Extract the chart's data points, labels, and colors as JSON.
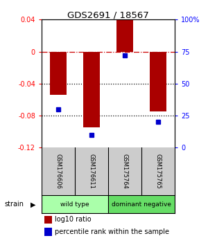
{
  "title": "GDS2691 / 18567",
  "samples": [
    "GSM176606",
    "GSM176611",
    "GSM175764",
    "GSM175765"
  ],
  "log10_ratio": [
    -0.054,
    -0.095,
    0.04,
    -0.075
  ],
  "percentile_rank": [
    30,
    10,
    72,
    20
  ],
  "ylim_left": [
    -0.12,
    0.04
  ],
  "ylim_right": [
    0,
    100
  ],
  "yticks_left": [
    -0.12,
    -0.08,
    -0.04,
    0,
    0.04
  ],
  "yticks_right": [
    0,
    25,
    50,
    75,
    100
  ],
  "ytick_labels_left": [
    "-0.12",
    "-0.08",
    "-0.04",
    "0",
    "0.04"
  ],
  "ytick_labels_right": [
    "0",
    "25",
    "50",
    "75",
    "100%"
  ],
  "bar_color": "#aa0000",
  "dot_color": "#0000cc",
  "groups": [
    {
      "label": "wild type",
      "indices": [
        0,
        1
      ],
      "color": "#aaffaa"
    },
    {
      "label": "dominant negative",
      "indices": [
        2,
        3
      ],
      "color": "#66dd66"
    }
  ],
  "legend_bar_label": "log10 ratio",
  "legend_dot_label": "percentile rank within the sample",
  "strain_label": "strain",
  "background_color": "#ffffff",
  "zero_line_color": "#cc0000",
  "dotted_line_color": "#000000",
  "label_bg_color": "#cccccc"
}
